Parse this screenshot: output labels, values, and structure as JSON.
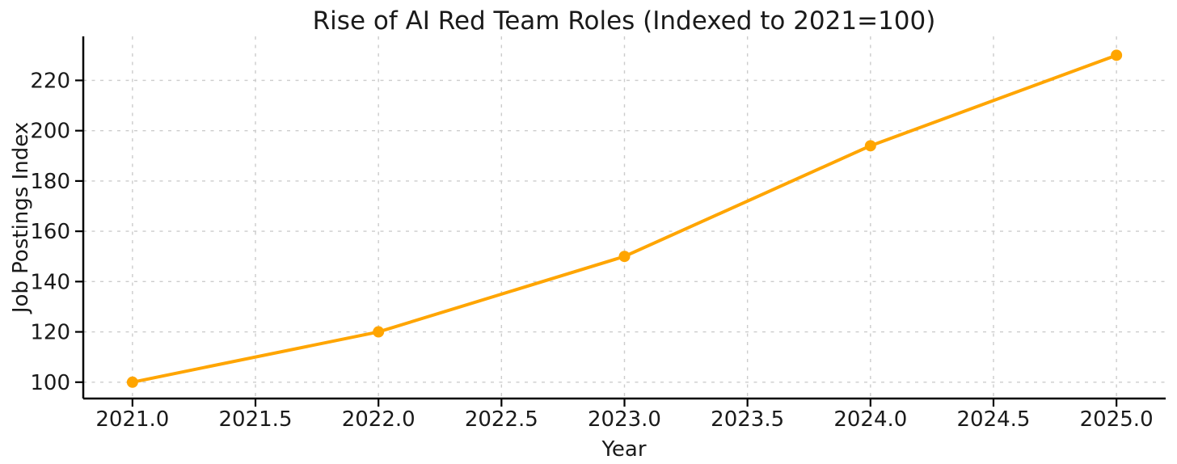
{
  "chart_data": {
    "type": "line",
    "title": "Rise of AI Red Team Roles (Indexed to 2021=100)",
    "xlabel": "Year",
    "ylabel": "Job Postings Index",
    "series": [
      {
        "name": "Job Postings Index",
        "x": [
          2021,
          2022,
          2023,
          2024,
          2025
        ],
        "values": [
          100,
          120,
          150,
          194,
          230
        ],
        "line_color": "#FFA500",
        "marker": "o",
        "marker_color": "#FFA500"
      }
    ],
    "xlim": [
      2020.8,
      2025.2
    ],
    "ylim": [
      93.5,
      237.5
    ],
    "xticks": [
      2021.0,
      2021.5,
      2022.0,
      2022.5,
      2023.0,
      2023.5,
      2024.0,
      2024.5,
      2025.0
    ],
    "xtick_labels": [
      "2021.0",
      "2021.5",
      "2022.0",
      "2022.5",
      "2023.0",
      "2023.5",
      "2024.0",
      "2024.5",
      "2025.0"
    ],
    "yticks": [
      100,
      120,
      140,
      160,
      180,
      200,
      220
    ],
    "ytick_labels": [
      "100",
      "120",
      "140",
      "160",
      "180",
      "200",
      "220"
    ],
    "grid": true,
    "grid_style": "dashed",
    "grid_color": "#cccccc",
    "spine_color": "#000000",
    "text_color": "#1a1a1a",
    "background": "#ffffff",
    "legend": false
  }
}
